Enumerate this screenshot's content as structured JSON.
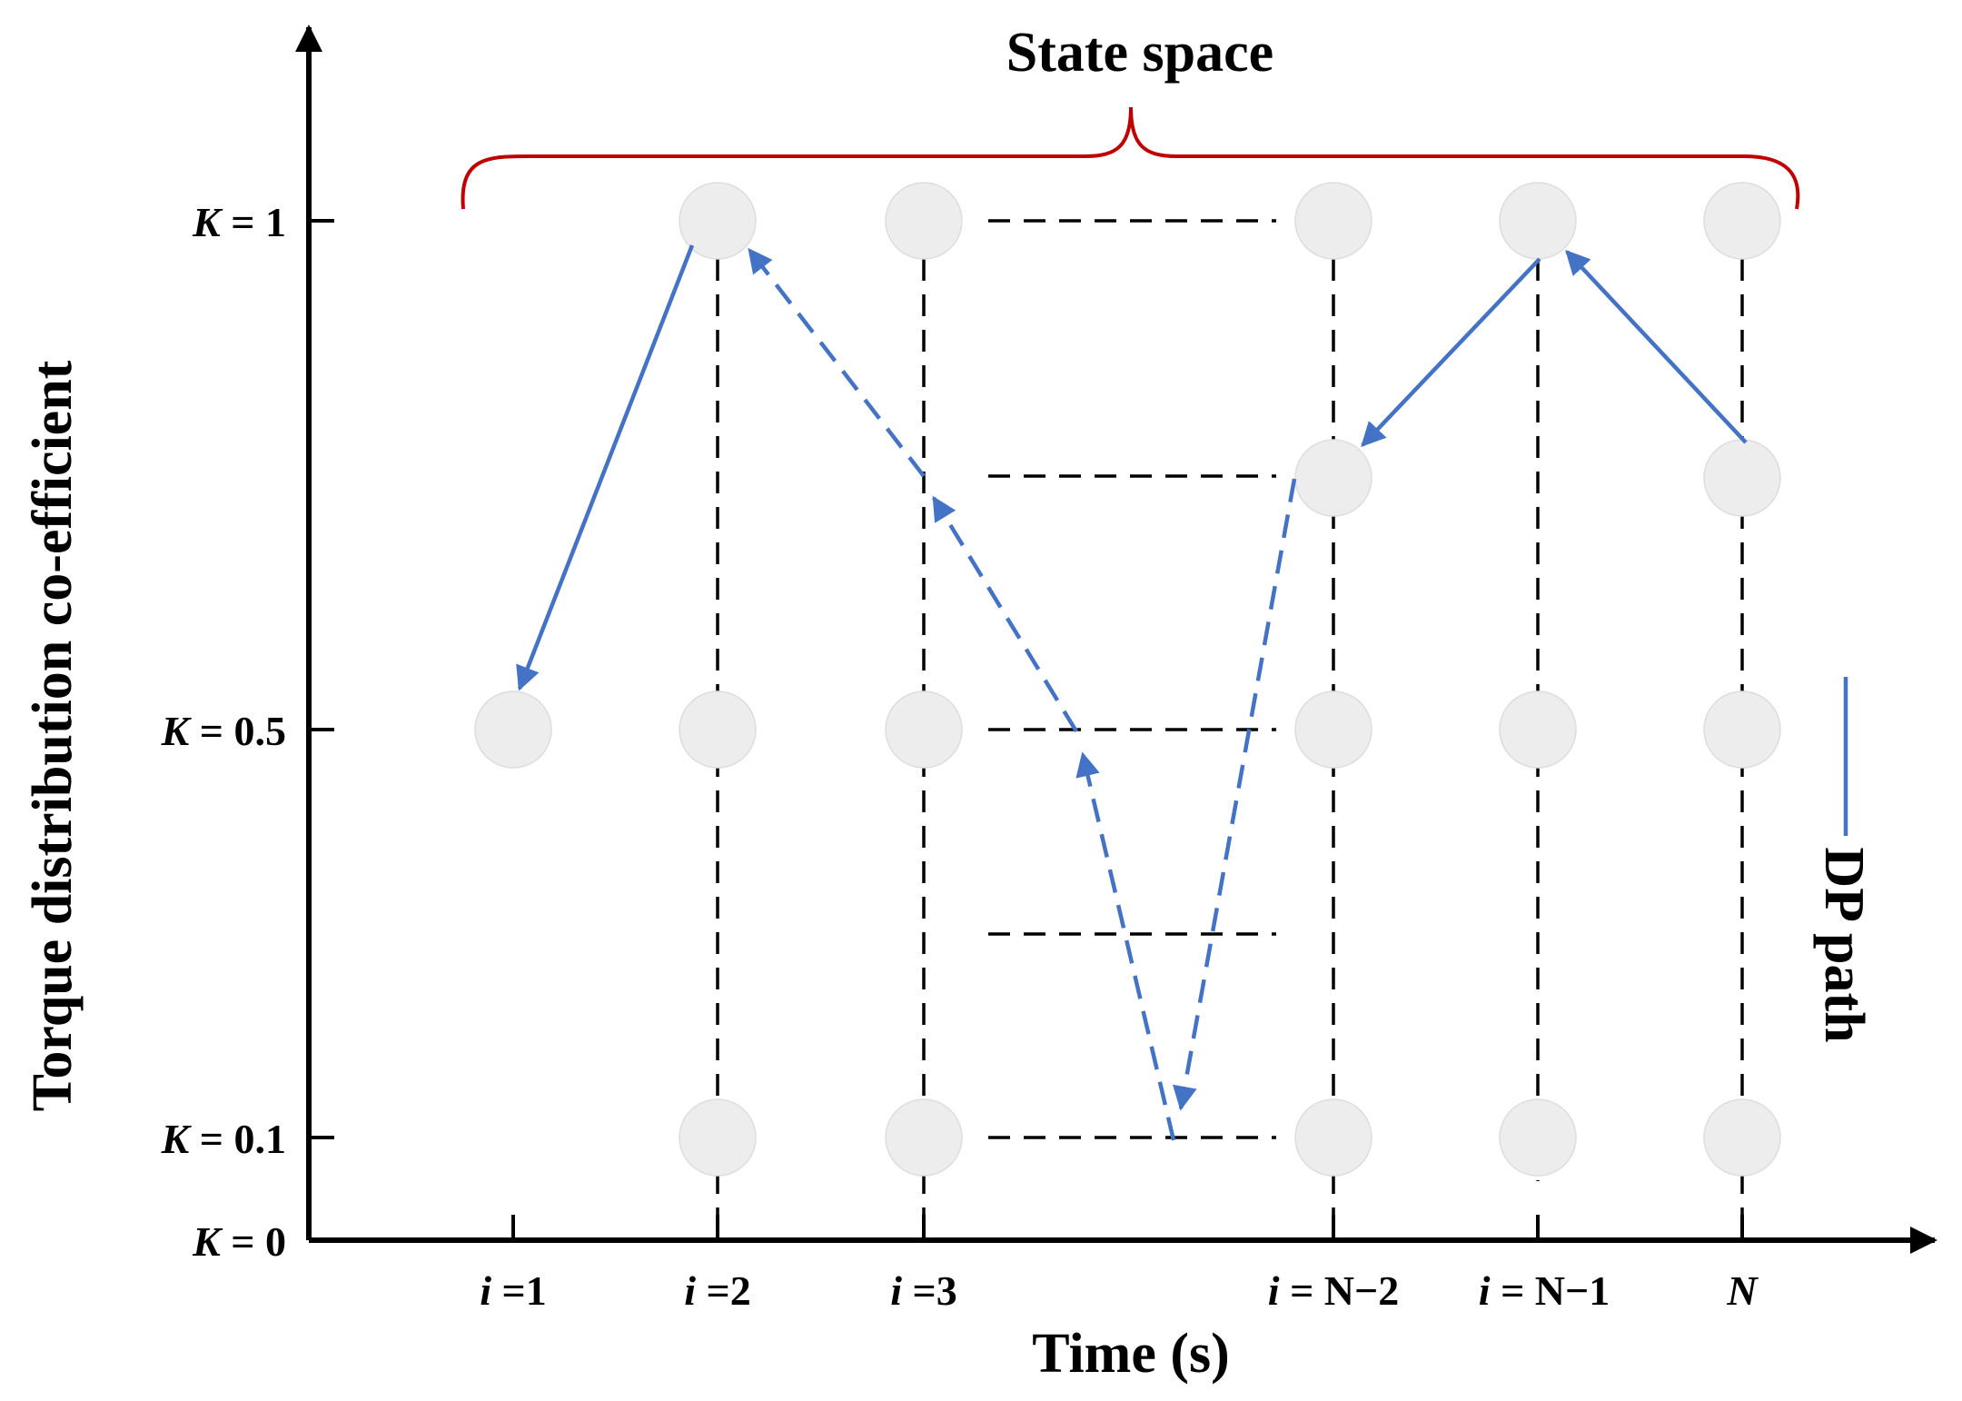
{
  "title": "State space",
  "y_axis": {
    "title": "Torque distribution co-efficient",
    "ticks": [
      {
        "var": "K",
        "rest": " = 1"
      },
      {
        "var": "K",
        "rest": " = 0.5"
      },
      {
        "var": "K",
        "rest": " = 0.1"
      },
      {
        "var": "K",
        "rest": " = 0"
      }
    ]
  },
  "x_axis": {
    "title": "Time (s)",
    "ticks": [
      {
        "var": "i",
        "rest": " =1"
      },
      {
        "var": "i",
        "rest": " =2"
      },
      {
        "var": "i",
        "rest": " =3"
      },
      {
        "var": "i",
        "rest": " = N−2"
      },
      {
        "var": "i",
        "rest": " = N−1"
      },
      {
        "var": "N",
        "rest": ""
      }
    ]
  },
  "legend": {
    "label": "DP path"
  },
  "colors": {
    "path": "#4472C4",
    "brace": "#C00000",
    "node": "#EDEDED",
    "grid": "#000000"
  }
}
